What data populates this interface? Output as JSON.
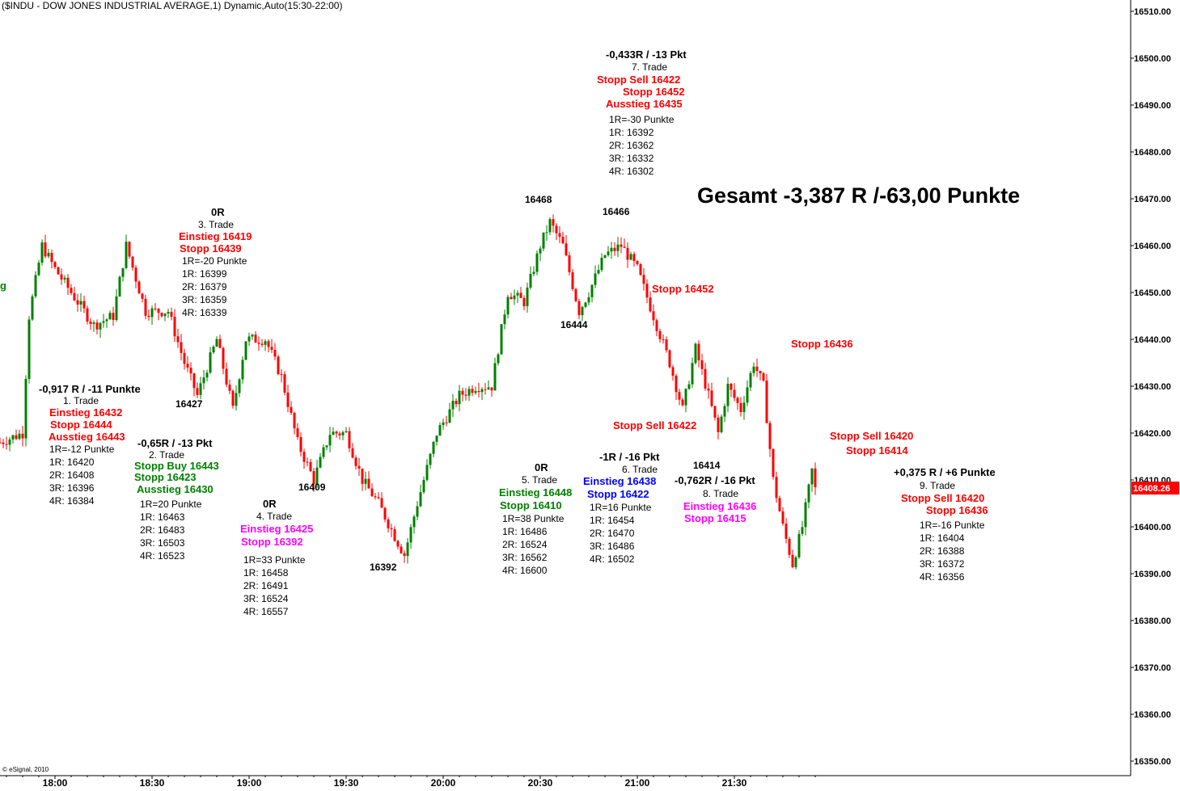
{
  "header": {
    "title": "($INDU - DOW JONES INDUSTRIAL AVERAGE,1) Dynamic,Auto(15:30-22:00)"
  },
  "summary": {
    "total": "Gesamt -3,387 R /-63,00 Punkte"
  },
  "footer": {
    "copyright": "© eSignal, 2010"
  },
  "colors": {
    "up": "#008000",
    "down": "#ff0000",
    "last_price_bg": "#ff0000",
    "grid": "#000000"
  },
  "chart_data": {
    "type": "candlestick",
    "y_axis": {
      "ticks": [
        "16350.00",
        "16360.00",
        "16370.00",
        "16380.00",
        "16390.00",
        "16400.00",
        "16410.00",
        "16420.00",
        "16430.00",
        "16440.00",
        "16450.00",
        "16460.00",
        "16470.00",
        "16480.00",
        "16490.00",
        "16500.00",
        "16510.00"
      ],
      "range": [
        16348,
        16512
      ],
      "last_price": "16408.26"
    },
    "x_axis": {
      "ticks": [
        "18:00",
        "18:30",
        "19:00",
        "19:30",
        "20:00",
        "20:30",
        "21:00",
        "21:30"
      ]
    },
    "price_path": [
      {
        "t": "17:43",
        "v": 16418
      },
      {
        "t": "17:50",
        "v": 16420
      },
      {
        "t": "17:52",
        "v": 16445
      },
      {
        "t": "17:56",
        "v": 16460
      },
      {
        "t": "18:00",
        "v": 16455
      },
      {
        "t": "18:05",
        "v": 16450
      },
      {
        "t": "18:12",
        "v": 16443
      },
      {
        "t": "18:18",
        "v": 16445
      },
      {
        "t": "18:22",
        "v": 16460
      },
      {
        "t": "18:28",
        "v": 16446
      },
      {
        "t": "18:35",
        "v": 16446
      },
      {
        "t": "18:40",
        "v": 16435
      },
      {
        "t": "18:44",
        "v": 16428
      },
      {
        "t": "18:50",
        "v": 16440
      },
      {
        "t": "18:55",
        "v": 16425
      },
      {
        "t": "18:59",
        "v": 16440
      },
      {
        "t": "19:05",
        "v": 16440
      },
      {
        "t": "19:10",
        "v": 16432
      },
      {
        "t": "19:15",
        "v": 16418
      },
      {
        "t": "19:20",
        "v": 16410
      },
      {
        "t": "19:25",
        "v": 16420
      },
      {
        "t": "19:30",
        "v": 16420
      },
      {
        "t": "19:35",
        "v": 16410
      },
      {
        "t": "19:40",
        "v": 16405
      },
      {
        "t": "19:45",
        "v": 16398
      },
      {
        "t": "19:48",
        "v": 16394
      },
      {
        "t": "19:52",
        "v": 16405
      },
      {
        "t": "19:58",
        "v": 16420
      },
      {
        "t": "20:05",
        "v": 16428
      },
      {
        "t": "20:10",
        "v": 16430
      },
      {
        "t": "20:15",
        "v": 16430
      },
      {
        "t": "20:20",
        "v": 16450
      },
      {
        "t": "20:25",
        "v": 16448
      },
      {
        "t": "20:30",
        "v": 16460
      },
      {
        "t": "20:33",
        "v": 16465
      },
      {
        "t": "20:37",
        "v": 16460
      },
      {
        "t": "20:42",
        "v": 16446
      },
      {
        "t": "20:45",
        "v": 16450
      },
      {
        "t": "20:50",
        "v": 16458
      },
      {
        "t": "20:55",
        "v": 16460
      },
      {
        "t": "21:00",
        "v": 16455
      },
      {
        "t": "21:05",
        "v": 16445
      },
      {
        "t": "21:10",
        "v": 16435
      },
      {
        "t": "21:14",
        "v": 16425
      },
      {
        "t": "21:18",
        "v": 16438
      },
      {
        "t": "21:22",
        "v": 16428
      },
      {
        "t": "21:25",
        "v": 16420
      },
      {
        "t": "21:28",
        "v": 16430
      },
      {
        "t": "21:32",
        "v": 16425
      },
      {
        "t": "21:36",
        "v": 16435
      },
      {
        "t": "21:39",
        "v": 16430
      },
      {
        "t": "21:42",
        "v": 16410
      },
      {
        "t": "21:45",
        "v": 16400
      },
      {
        "t": "21:48",
        "v": 16392
      },
      {
        "t": "21:51",
        "v": 16400
      },
      {
        "t": "21:54",
        "v": 16412
      },
      {
        "t": "21:55",
        "v": 16408
      }
    ]
  },
  "annotations": {
    "peaks": [
      "16468",
      "16466",
      "16444",
      "16427",
      "16409",
      "16392",
      "16414"
    ],
    "trade1": {
      "result": "-0,917 R / -11 Punkte",
      "name": "1. Trade",
      "entry": "Einstieg 16432",
      "stop": "Stopp 16444",
      "exit": "Ausstieg 16443",
      "r": "1R=-12 Punkte",
      "r1": "1R: 16420",
      "r2": "2R: 16408",
      "r3": "3R: 16396",
      "r4": "4R: 16384"
    },
    "trade2": {
      "result": "-0,65R / -13 Pkt",
      "name": "2. Trade",
      "entry": "Stopp Buy 16443",
      "stop": "Stopp 16423",
      "exit": "Ausstieg 16430",
      "r": "1R=20 Punkte",
      "r1": "1R: 16463",
      "r2": "2R: 16483",
      "r3": "3R: 16503",
      "r4": "4R: 16523"
    },
    "trade3": {
      "result": "0R",
      "name": "3. Trade",
      "entry": "Einstieg 16419",
      "stop": "Stopp 16439",
      "r": "1R=-20 Punkte",
      "r1": "1R: 16399",
      "r2": "2R: 16379",
      "r3": "3R: 16359",
      "r4": "4R: 16339"
    },
    "trade4": {
      "result": "0R",
      "name": "4. Trade",
      "entry": "Einstieg 16425",
      "stop": "Stopp 16392",
      "r": "1R=33 Punkte",
      "r1": "1R: 16458",
      "r2": "2R: 16491",
      "r3": "3R: 16524",
      "r4": "4R: 16557"
    },
    "trade5": {
      "result": "0R",
      "name": "5. Trade",
      "entry": "Einstieg 16448",
      "stop": "Stopp 16410",
      "r": "1R=38 Punkte",
      "r1": "1R: 16486",
      "r2": "2R: 16524",
      "r3": "3R: 16562",
      "r4": "4R: 16600"
    },
    "trade6": {
      "result": "-1R / -16 Pkt",
      "name": "6. Trade",
      "entry": "Einstieg 16438",
      "stop": "Stopp 16422",
      "r": "1R=16 Punkte",
      "r1": "1R: 16454",
      "r2": "2R: 16470",
      "r3": "3R: 16486",
      "r4": "4R: 16502"
    },
    "trade7": {
      "result": "-0,433R / -13 Pkt",
      "name": "7. Trade",
      "entry": "Stopp Sell 16422",
      "stop": "Stopp 16452",
      "exit": "Ausstieg 16435",
      "r": "1R=-30 Punkte",
      "r1": "1R: 16392",
      "r2": "2R: 16362",
      "r3": "3R: 16332",
      "r4": "4R: 16302"
    },
    "trade8": {
      "result": "-0,762R / -16 Pkt",
      "name": "8. Trade",
      "entry": "Einstieg 16436",
      "stop": "Stopp 16415"
    },
    "trade9": {
      "result": "+0,375 R / +6 Punkte",
      "name": "9. Trade",
      "entry": "Stopp Sell 16420",
      "stop": "Stopp 16436",
      "r": "1R=-16 Punkte",
      "r1": "1R: 16404",
      "r2": "2R: 16388",
      "r3": "3R: 16372",
      "r4": "4R: 16356"
    },
    "notes": {
      "stopp_16452": "Stopp 16452",
      "stopp_sell_16422": "Stopp Sell 16422",
      "stopp_16436": "Stopp 16436",
      "stopp_sell_16420": "Stopp Sell 16420",
      "stopp_16414": "Stopp 16414",
      "left_edge": "g"
    }
  }
}
